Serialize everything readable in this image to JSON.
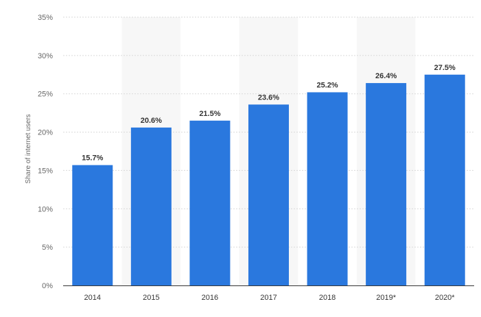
{
  "chart_data": {
    "type": "bar",
    "categories": [
      "2014",
      "2015",
      "2016",
      "2017",
      "2018",
      "2019*",
      "2020*"
    ],
    "values": [
      15.7,
      20.6,
      21.5,
      23.6,
      25.2,
      26.4,
      27.5
    ],
    "data_labels": [
      "15.7%",
      "20.6%",
      "21.5%",
      "23.6%",
      "25.2%",
      "26.4%",
      "27.5%"
    ],
    "ylabel": "Share of internet users",
    "ylim": [
      0,
      35
    ],
    "yticks": [
      0,
      5,
      10,
      15,
      20,
      25,
      30,
      35
    ],
    "ytick_labels": [
      "0%",
      "5%",
      "10%",
      "15%",
      "20%",
      "25%",
      "30%",
      "35%"
    ],
    "grid": true,
    "alternating_column_shading": true,
    "colors": {
      "bar": "#2a78de",
      "grid": "#d9d9d9",
      "band": "#f7f7f7",
      "axis": "#333333"
    }
  }
}
